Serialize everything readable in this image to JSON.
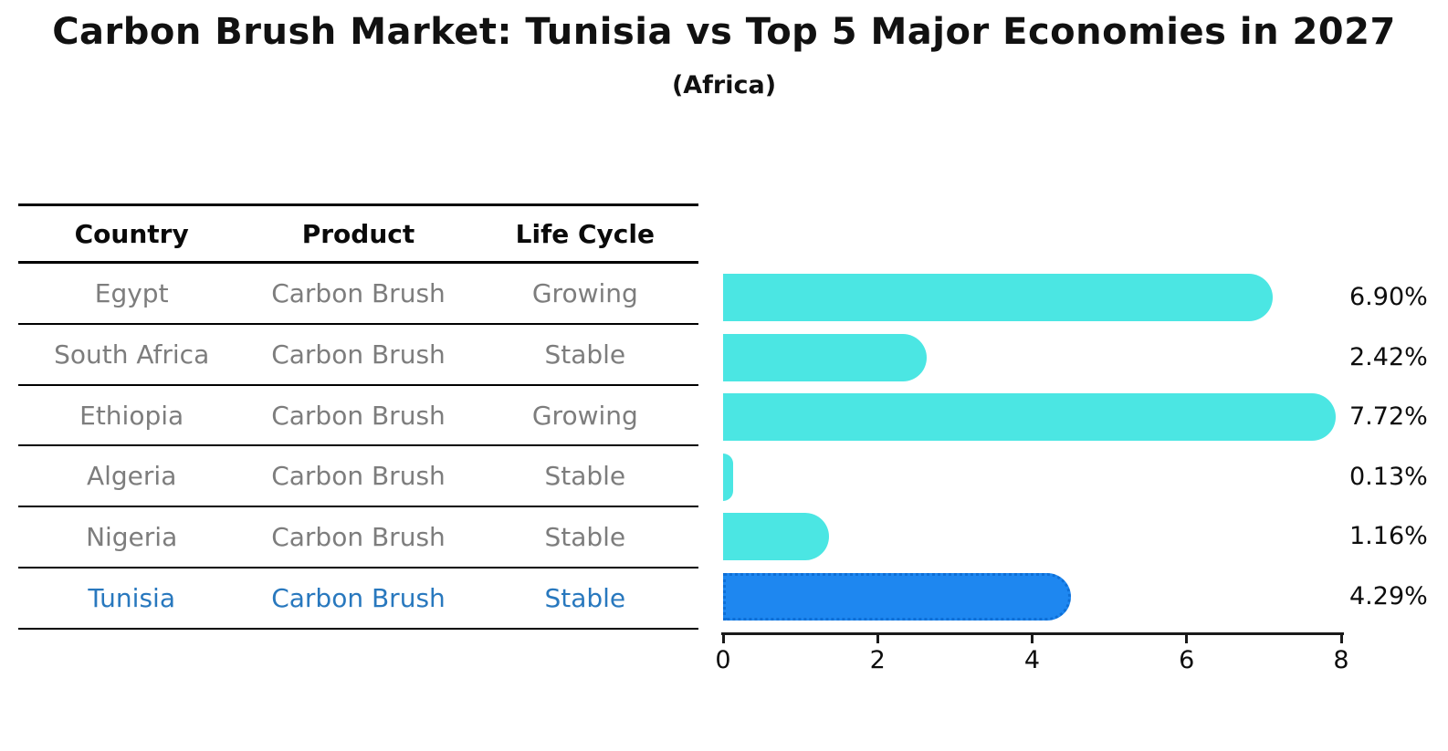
{
  "title": "Carbon Brush Market: Tunisia vs Top 5 Major Economies in 2027",
  "subtitle": "(Africa)",
  "table": {
    "headers": {
      "country": "Country",
      "product": "Product",
      "life_cycle": "Life Cycle"
    },
    "rows": [
      {
        "country": "Egypt",
        "product": "Carbon Brush",
        "life_cycle": "Growing",
        "highlight": false
      },
      {
        "country": "South Africa",
        "product": "Carbon Brush",
        "life_cycle": "Stable",
        "highlight": false
      },
      {
        "country": "Ethiopia",
        "product": "Carbon Brush",
        "life_cycle": "Growing",
        "highlight": false
      },
      {
        "country": "Algeria",
        "product": "Carbon Brush",
        "life_cycle": "Stable",
        "highlight": false
      },
      {
        "country": "Nigeria",
        "product": "Carbon Brush",
        "life_cycle": "Stable",
        "highlight": false
      },
      {
        "country": "Tunisia",
        "product": "Carbon Brush",
        "life_cycle": "Stable",
        "highlight": true
      }
    ]
  },
  "chart_data": {
    "type": "bar",
    "orientation": "horizontal",
    "title": "Carbon Brush Market: Tunisia vs Top 5 Major Economies in 2027",
    "subtitle": "(Africa)",
    "categories": [
      "Egypt",
      "South Africa",
      "Ethiopia",
      "Algeria",
      "Nigeria",
      "Tunisia"
    ],
    "values": [
      6.9,
      2.42,
      7.72,
      0.13,
      1.16,
      4.29
    ],
    "value_labels": [
      "6.90%",
      "2.42%",
      "7.72%",
      "0.13%",
      "1.16%",
      "4.29%"
    ],
    "xlabel": "",
    "ylabel": "",
    "xlim": [
      0,
      8
    ],
    "xticks": [
      0,
      2,
      4,
      6,
      8
    ],
    "grid": false,
    "legend": false,
    "bar_color": "#4BE6E3",
    "highlight_index": 5,
    "highlight_color": "#1E87F0",
    "highlight_text_color": "#2878BE"
  }
}
